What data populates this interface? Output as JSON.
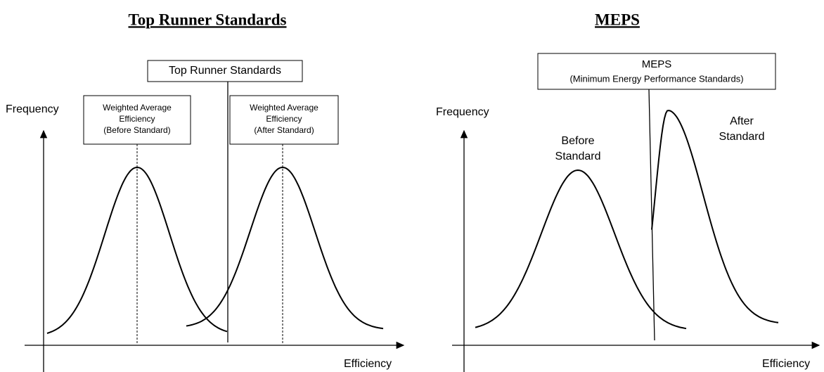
{
  "panels": [
    {
      "title": "Top Runner Standards",
      "y_axis_label": "Frequency",
      "x_axis_label": "Efficiency",
      "standard_box": {
        "lines": [
          "Top Runner Standards"
        ]
      },
      "average_boxes": [
        {
          "lines": [
            "Weighted Average",
            "Efficiency",
            "(Before Standard)"
          ]
        },
        {
          "lines": [
            "Weighted Average",
            "Efficiency",
            "(After Standard)"
          ]
        }
      ]
    },
    {
      "title": "MEPS",
      "y_axis_label": "Frequency",
      "x_axis_label": "Efficiency",
      "standard_box": {
        "lines": [
          "MEPS",
          "(Minimum Energy Performance Standards)"
        ]
      },
      "curve_labels": [
        {
          "lines": [
            "Before",
            "Standard"
          ]
        },
        {
          "lines": [
            "After",
            "Standard"
          ]
        }
      ]
    }
  ]
}
